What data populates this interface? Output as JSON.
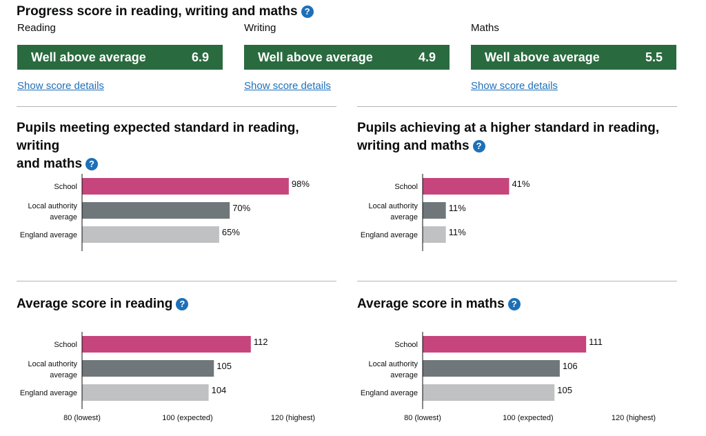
{
  "progress": {
    "title": "Progress score in reading, writing and maths",
    "help_icon": "question-mark-icon",
    "cards": [
      {
        "subject": "Reading",
        "band": "Well above average",
        "score": "6.9",
        "link": "Show score details"
      },
      {
        "subject": "Writing",
        "band": "Well above average",
        "score": "4.9",
        "link": "Show score details"
      },
      {
        "subject": "Maths",
        "band": "Well above average",
        "score": "5.5",
        "link": "Show score details"
      }
    ],
    "band_color": "#2a6a3f"
  },
  "sections": {
    "expected": {
      "title_line1": "Pupils meeting expected standard in reading, writing",
      "title_line2": "and maths"
    },
    "higher": {
      "title_line1": "Pupils achieving at a higher standard in reading,",
      "title_line2": "writing and maths"
    },
    "reading": {
      "title": "Average score in reading"
    },
    "maths": {
      "title": "Average score in maths"
    }
  },
  "colors": {
    "school": "#c6457c",
    "local_authority": "#6f777b",
    "england": "#bfc1c3",
    "link": "#1d70b8"
  },
  "chart_data": [
    {
      "type": "bar",
      "title": "Pupils meeting expected standard in reading, writing and maths",
      "categories": [
        "School",
        "Local authority average",
        "England average"
      ],
      "values": [
        98,
        70,
        65
      ],
      "value_labels": [
        "98%",
        "70%",
        "65%"
      ],
      "xlim": [
        0,
        100
      ]
    },
    {
      "type": "bar",
      "title": "Pupils achieving at a higher standard in reading, writing and maths",
      "categories": [
        "School",
        "Local authority average",
        "England average"
      ],
      "values": [
        41,
        11,
        11
      ],
      "value_labels": [
        "41%",
        "11%",
        "11%"
      ],
      "xlim": [
        0,
        100
      ]
    },
    {
      "type": "bar",
      "title": "Average score in reading",
      "categories": [
        "School",
        "Local authority average",
        "England average"
      ],
      "values": [
        112,
        105,
        104
      ],
      "value_labels": [
        "112",
        "105",
        "104"
      ],
      "xlim": [
        80,
        120
      ],
      "ticks": [
        {
          "value": 80,
          "label": "80 (lowest)"
        },
        {
          "value": 100,
          "label": "100 (expected)"
        },
        {
          "value": 120,
          "label": "120 (highest)"
        }
      ]
    },
    {
      "type": "bar",
      "title": "Average score in maths",
      "categories": [
        "School",
        "Local authority average",
        "England average"
      ],
      "values": [
        111,
        106,
        105
      ],
      "value_labels": [
        "111",
        "106",
        "105"
      ],
      "xlim": [
        80,
        120
      ],
      "ticks": [
        {
          "value": 80,
          "label": "80 (lowest)"
        },
        {
          "value": 100,
          "label": "100 (expected)"
        },
        {
          "value": 120,
          "label": "120 (highest)"
        }
      ]
    }
  ]
}
